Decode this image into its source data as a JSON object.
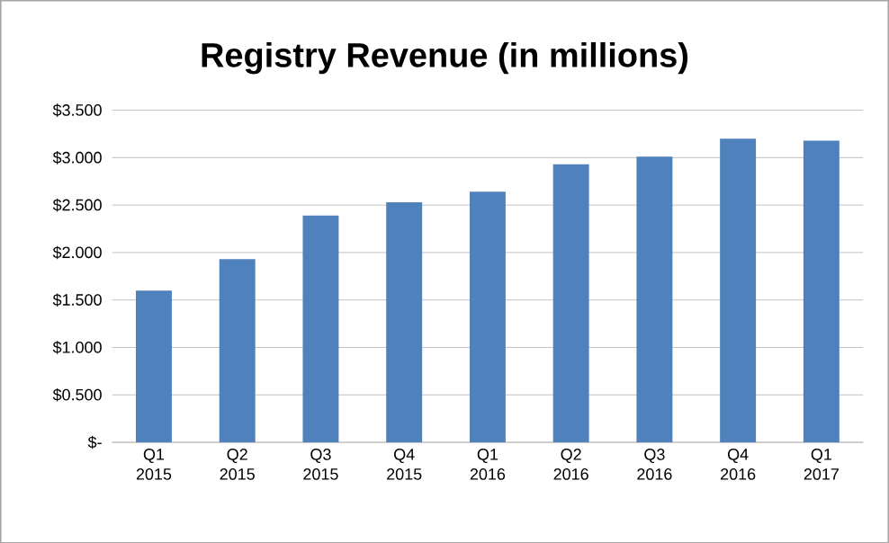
{
  "chart_data": {
    "type": "bar",
    "title": "Registry Revenue (in millions)",
    "categories": [
      "Q1 2015",
      "Q2 2015",
      "Q3 2015",
      "Q4 2015",
      "Q1 2016",
      "Q2 2016",
      "Q3 2016",
      "Q4 2016",
      "Q1 2017"
    ],
    "values": [
      1.6,
      1.93,
      2.39,
      2.53,
      2.64,
      2.93,
      3.01,
      3.2,
      3.18
    ],
    "color": "#4f81bd",
    "ylim": [
      0,
      3.5
    ],
    "yticks": [
      {
        "value": 0,
        "label": "$-"
      },
      {
        "value": 0.5,
        "label": "$0.500"
      },
      {
        "value": 1,
        "label": "$1.000"
      },
      {
        "value": 1.5,
        "label": "$1.500"
      },
      {
        "value": 2,
        "label": "$2.000"
      },
      {
        "value": 2.5,
        "label": "$2.500"
      },
      {
        "value": 3,
        "label": "$3.000"
      },
      {
        "value": 3.5,
        "label": "$3.500"
      }
    ],
    "grid": "y"
  }
}
